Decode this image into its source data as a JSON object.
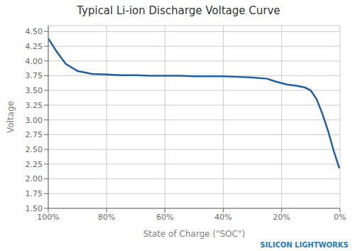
{
  "chart_data": {
    "type": "line",
    "title": "Typical Li-ion Discharge Voltage Curve",
    "x_label": "State of Charge (\"SOC\")",
    "y_label": "Voltage",
    "annotations": [
      {
        "text": "SILICON LIGHTWORKS",
        "color": "#1F7BC0"
      }
    ],
    "color": "#1F5FA6",
    "grid": true,
    "xlim": [
      1.0,
      0.0
    ],
    "xticks": [
      {
        "value": 1.0,
        "label": "100%"
      },
      {
        "value": 0.8,
        "label": "80%"
      },
      {
        "value": 0.6,
        "label": "60%"
      },
      {
        "value": 0.4,
        "label": "40%"
      },
      {
        "value": 0.2,
        "label": "20%"
      },
      {
        "value": 0.0,
        "label": "0%"
      }
    ],
    "ylim": [
      1.5,
      4.6
    ],
    "yticks": [
      {
        "value": 1.5,
        "label": "1.50"
      },
      1.75,
      {
        "value": 2.0,
        "label": "2.00"
      },
      2.25,
      {
        "value": 2.5,
        "label": "2.50"
      },
      2.75,
      {
        "value": 3.0,
        "label": "3.00"
      },
      3.25,
      {
        "value": 3.5,
        "label": "3.50"
      },
      3.75,
      {
        "value": 4.0,
        "label": "4.00"
      },
      4.25,
      {
        "value": 4.5,
        "label": "4.50"
      }
    ],
    "x": [
      1.0,
      0.97,
      0.94,
      0.9,
      0.85,
      0.8,
      0.75,
      0.7,
      0.65,
      0.6,
      0.55,
      0.5,
      0.45,
      0.4,
      0.35,
      0.3,
      0.25,
      0.22,
      0.18,
      0.15,
      0.12,
      0.1,
      0.08,
      0.06,
      0.04,
      0.02,
      0.01,
      0.005,
      0.001
    ],
    "values": [
      4.38,
      4.15,
      3.95,
      3.83,
      3.78,
      3.77,
      3.76,
      3.76,
      3.75,
      3.75,
      3.75,
      3.74,
      3.74,
      3.74,
      3.73,
      3.72,
      3.7,
      3.65,
      3.6,
      3.58,
      3.55,
      3.5,
      3.35,
      3.1,
      2.8,
      2.45,
      2.3,
      2.22,
      2.18
    ]
  }
}
